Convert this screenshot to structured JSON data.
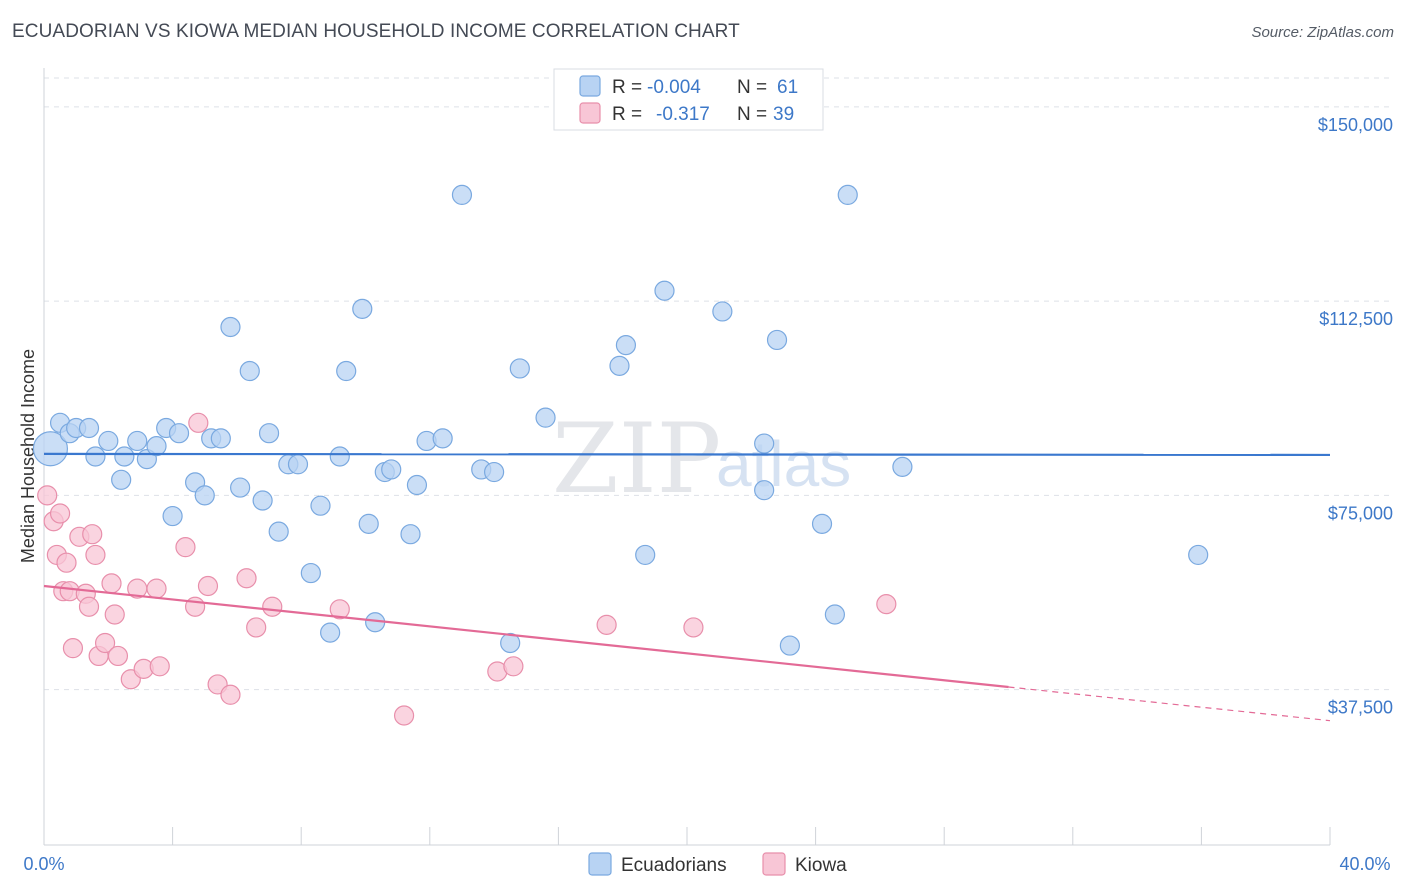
{
  "title": "ECUADORIAN VS KIOWA MEDIAN HOUSEHOLD INCOME CORRELATION CHART",
  "source": "Source: ZipAtlas.com",
  "watermark": {
    "zip": "ZIP",
    "atlas": "atlas"
  },
  "colors": {
    "blue_fill": "#b8d3f3",
    "blue_stroke": "#7aa9e0",
    "blue_line": "#3a78cf",
    "pink_fill": "#f8c6d6",
    "pink_stroke": "#e88fab",
    "pink_line": "#e36a96",
    "axis_text": "#3d78c8",
    "grid": "#dde1e7"
  },
  "legend": {
    "rows": [
      {
        "r_label": "R =",
        "r_value": "-0.004",
        "n_label": "N =",
        "n_value": "61"
      },
      {
        "r_label": "R =",
        "r_value": "-0.317",
        "n_label": "N =",
        "n_value": "39"
      }
    ]
  },
  "bottom_legend": [
    "Ecuadorians",
    "Kiowa"
  ],
  "chart_data": {
    "type": "scatter",
    "xlabel": "",
    "ylabel": "Median Household Income",
    "xlim": [
      0,
      40
    ],
    "ylim": [
      7500,
      157500
    ],
    "x_tick_labels": [
      "0.0%",
      "40.0%"
    ],
    "y_ticks": [
      {
        "value": 37500,
        "label": "$37,500"
      },
      {
        "value": 75000,
        "label": "$75,000"
      },
      {
        "value": 112500,
        "label": "$112,500"
      },
      {
        "value": 150000,
        "label": "$150,000"
      }
    ],
    "grid": true,
    "series": [
      {
        "name": "Ecuadorians",
        "color": "#7aa9e0",
        "trend": {
          "x": [
            0,
            40
          ],
          "y": [
            83000,
            82800
          ],
          "dashed_from": null
        },
        "points": [
          [
            0.2,
            84000,
            3
          ],
          [
            0.5,
            89000,
            1
          ],
          [
            0.8,
            87000,
            1
          ],
          [
            1.0,
            88000,
            1
          ],
          [
            1.4,
            88000,
            1
          ],
          [
            1.6,
            82500,
            1
          ],
          [
            2.0,
            85500,
            1
          ],
          [
            2.4,
            78000,
            1
          ],
          [
            2.5,
            82500,
            1
          ],
          [
            2.9,
            85500,
            1
          ],
          [
            3.2,
            82000,
            1
          ],
          [
            3.5,
            84500,
            1
          ],
          [
            3.8,
            88000,
            1
          ],
          [
            4.0,
            71000,
            1
          ],
          [
            4.2,
            87000,
            1
          ],
          [
            4.7,
            77500,
            1
          ],
          [
            5.0,
            75000,
            1
          ],
          [
            5.2,
            86000,
            1
          ],
          [
            5.5,
            86000,
            1
          ],
          [
            5.8,
            107500,
            1
          ],
          [
            6.1,
            76500,
            1
          ],
          [
            6.4,
            99000,
            1
          ],
          [
            6.8,
            74000,
            1
          ],
          [
            7.0,
            87000,
            1
          ],
          [
            7.3,
            68000,
            1
          ],
          [
            7.6,
            81000,
            1
          ],
          [
            7.9,
            81000,
            1
          ],
          [
            8.3,
            60000,
            1
          ],
          [
            8.6,
            73000,
            1
          ],
          [
            8.9,
            48500,
            1
          ],
          [
            9.2,
            82500,
            1
          ],
          [
            9.4,
            99000,
            1
          ],
          [
            9.9,
            111000,
            1
          ],
          [
            10.1,
            69500,
            1
          ],
          [
            10.3,
            50500,
            1
          ],
          [
            10.6,
            79500,
            1
          ],
          [
            10.8,
            80000,
            1
          ],
          [
            11.4,
            67500,
            1
          ],
          [
            11.6,
            77000,
            1
          ],
          [
            11.9,
            85500,
            1
          ],
          [
            12.4,
            86000,
            1
          ],
          [
            13.0,
            133000,
            1
          ],
          [
            13.6,
            80000,
            1
          ],
          [
            14.0,
            79500,
            1
          ],
          [
            14.5,
            46500,
            1
          ],
          [
            14.8,
            99500,
            1
          ],
          [
            15.6,
            90000,
            1
          ],
          [
            17.9,
            100000,
            1
          ],
          [
            18.1,
            104000,
            1
          ],
          [
            18.7,
            63500,
            1
          ],
          [
            19.3,
            114500,
            1
          ],
          [
            21.1,
            110500,
            1
          ],
          [
            22.4,
            76000,
            1
          ],
          [
            22.4,
            85000,
            1
          ],
          [
            22.8,
            105000,
            1
          ],
          [
            23.2,
            46000,
            1
          ],
          [
            24.2,
            69500,
            1
          ],
          [
            24.6,
            52000,
            1
          ],
          [
            25.0,
            133000,
            1
          ],
          [
            26.7,
            80500,
            1
          ],
          [
            35.9,
            63500,
            1
          ]
        ]
      },
      {
        "name": "Kiowa",
        "color": "#e88fab",
        "trend": {
          "x": [
            0,
            40
          ],
          "y": [
            57500,
            31500
          ],
          "dashed_from": 30
        },
        "points": [
          [
            0.1,
            75000,
            1
          ],
          [
            0.3,
            70000,
            1
          ],
          [
            0.4,
            63500,
            1
          ],
          [
            0.5,
            71500,
            1
          ],
          [
            0.6,
            56500,
            1
          ],
          [
            0.7,
            62000,
            1
          ],
          [
            0.8,
            56500,
            1
          ],
          [
            0.9,
            45500,
            1
          ],
          [
            1.1,
            67000,
            1
          ],
          [
            1.3,
            56000,
            1
          ],
          [
            1.4,
            53500,
            1
          ],
          [
            1.5,
            67500,
            1
          ],
          [
            1.6,
            63500,
            1
          ],
          [
            1.7,
            44000,
            1
          ],
          [
            1.9,
            46500,
            1
          ],
          [
            2.1,
            58000,
            1
          ],
          [
            2.2,
            52000,
            1
          ],
          [
            2.3,
            44000,
            1
          ],
          [
            2.7,
            39500,
            1
          ],
          [
            2.9,
            57000,
            1
          ],
          [
            3.1,
            41500,
            1
          ],
          [
            3.5,
            57000,
            1
          ],
          [
            3.6,
            42000,
            1
          ],
          [
            4.4,
            65000,
            1
          ],
          [
            4.7,
            53500,
            1
          ],
          [
            4.8,
            89000,
            1
          ],
          [
            5.1,
            57500,
            1
          ],
          [
            5.4,
            38500,
            1
          ],
          [
            5.8,
            36500,
            1
          ],
          [
            6.3,
            59000,
            1
          ],
          [
            6.6,
            49500,
            1
          ],
          [
            7.1,
            53500,
            1
          ],
          [
            9.2,
            53000,
            1
          ],
          [
            11.2,
            32500,
            1
          ],
          [
            14.1,
            41000,
            1
          ],
          [
            14.6,
            42000,
            1
          ],
          [
            17.5,
            50000,
            1
          ],
          [
            20.2,
            49500,
            1
          ],
          [
            26.2,
            54000,
            1
          ]
        ]
      }
    ]
  }
}
